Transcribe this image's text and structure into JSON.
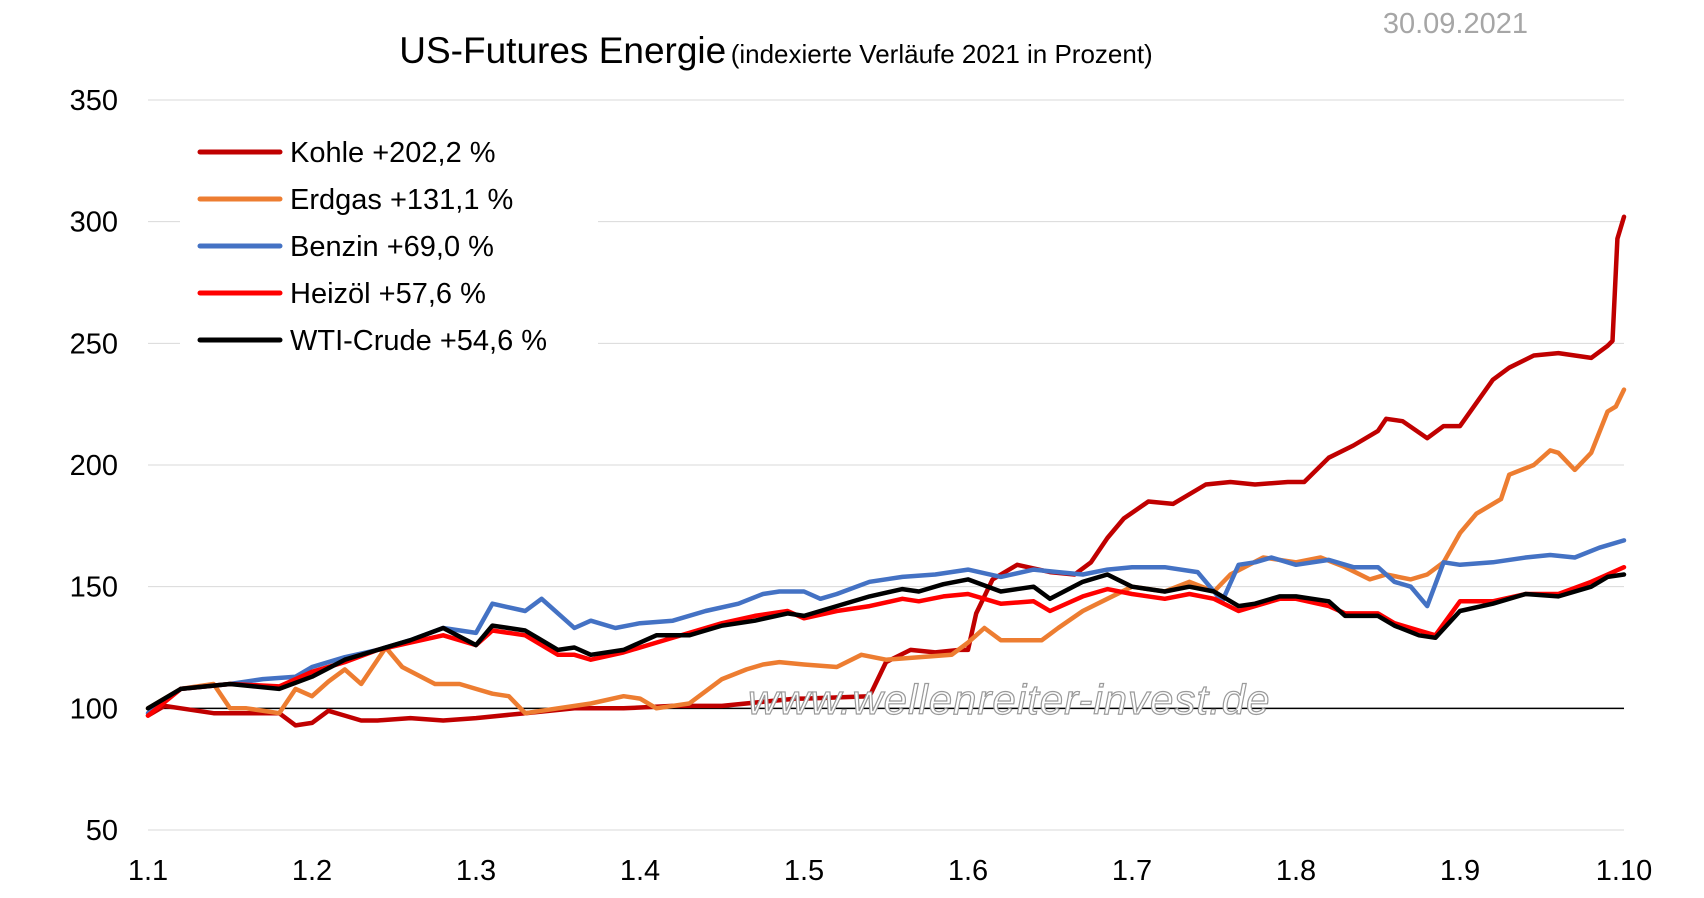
{
  "date": "30.09.2021",
  "watermark": "www.wellenreiter-invest.de",
  "chart_data": {
    "type": "line",
    "title": "US-Futures Energie",
    "subtitle": "(indexierte Verläufe 2021 in Prozent)",
    "xlabel": "",
    "ylabel": "",
    "ylim": [
      50,
      350
    ],
    "yticks": [
      50,
      100,
      150,
      200,
      250,
      300,
      350
    ],
    "xlim": [
      0,
      9
    ],
    "xticks": [
      0,
      1,
      2,
      3,
      4,
      5,
      6,
      7,
      8,
      9
    ],
    "xtick_labels": [
      "1.1",
      "1.2",
      "1.3",
      "1.4",
      "1.5",
      "1.6",
      "1.7",
      "1.8",
      "1.9",
      "1.10"
    ],
    "grid": "horizontal",
    "reference_line": 100,
    "legend_position": "top-left",
    "series": [
      {
        "name": "Kohle +202,2 %",
        "color": "#c00000",
        "x": [
          0,
          0.1,
          0.2,
          0.4,
          0.6,
          0.8,
          0.9,
          1.0,
          1.1,
          1.2,
          1.3,
          1.4,
          1.6,
          1.8,
          2.0,
          2.3,
          2.6,
          2.9,
          3.2,
          3.5,
          3.8,
          3.95,
          4.0,
          4.4,
          4.5,
          4.65,
          4.8,
          4.95,
          5.0,
          5.05,
          5.15,
          5.3,
          5.5,
          5.65,
          5.75,
          5.85,
          5.95,
          6.1,
          6.25,
          6.45,
          6.6,
          6.75,
          6.95,
          7.05,
          7.2,
          7.35,
          7.5,
          7.55,
          7.65,
          7.8,
          7.9,
          8.0,
          8.2,
          8.3,
          8.45,
          8.6,
          8.8,
          8.9,
          8.93,
          8.96,
          9.0
        ],
        "values": [
          97,
          101,
          100,
          98,
          98,
          98,
          93,
          94,
          99,
          97,
          95,
          95,
          96,
          95,
          96,
          98,
          100,
          100,
          101,
          101,
          103,
          104,
          104,
          105,
          119,
          124,
          123,
          124,
          124,
          139,
          153,
          159,
          156,
          155,
          160,
          170,
          178,
          185,
          184,
          192,
          193,
          192,
          193,
          193,
          203,
          208,
          214,
          219,
          218,
          211,
          216,
          216,
          235,
          240,
          245,
          246,
          244,
          249,
          251,
          293,
          302
        ]
      },
      {
        "name": "Erdgas +131,1 %",
        "color": "#ed7d31",
        "x": [
          0,
          0.2,
          0.4,
          0.5,
          0.6,
          0.8,
          0.9,
          1.0,
          1.1,
          1.2,
          1.3,
          1.45,
          1.55,
          1.75,
          1.9,
          2.0,
          2.1,
          2.2,
          2.3,
          2.5,
          2.7,
          2.9,
          3.0,
          3.1,
          3.3,
          3.5,
          3.65,
          3.75,
          3.85,
          4.0,
          4.2,
          4.35,
          4.5,
          4.7,
          4.9,
          5.0,
          5.1,
          5.2,
          5.3,
          5.45,
          5.55,
          5.7,
          5.85,
          6.0,
          6.2,
          6.35,
          6.5,
          6.6,
          6.8,
          7.0,
          7.15,
          7.3,
          7.45,
          7.55,
          7.7,
          7.8,
          7.9,
          8.0,
          8.1,
          8.25,
          8.3,
          8.45,
          8.55,
          8.6,
          8.7,
          8.8,
          8.9,
          8.95,
          9.0
        ],
        "values": [
          100,
          108,
          110,
          100,
          100,
          98,
          108,
          105,
          111,
          116,
          110,
          125,
          117,
          110,
          110,
          108,
          106,
          105,
          98,
          100,
          102,
          105,
          104,
          100,
          102,
          112,
          116,
          118,
          119,
          118,
          117,
          122,
          120,
          121,
          122,
          127,
          133,
          128,
          128,
          128,
          133,
          140,
          145,
          150,
          148,
          152,
          148,
          155,
          162,
          160,
          162,
          158,
          153,
          155,
          153,
          155,
          160,
          172,
          180,
          186,
          196,
          200,
          206,
          205,
          198,
          205,
          222,
          224,
          231
        ]
      },
      {
        "name": "Benzin +69,0 %",
        "color": "#4472c4",
        "x": [
          0,
          0.2,
          0.5,
          0.7,
          0.9,
          1.0,
          1.2,
          1.4,
          1.6,
          1.8,
          2.0,
          2.1,
          2.3,
          2.4,
          2.6,
          2.7,
          2.85,
          3.0,
          3.2,
          3.4,
          3.6,
          3.75,
          3.85,
          4.0,
          4.1,
          4.2,
          4.4,
          4.6,
          4.8,
          5.0,
          5.2,
          5.4,
          5.55,
          5.7,
          5.85,
          6.0,
          6.2,
          6.4,
          6.55,
          6.65,
          6.75,
          6.85,
          7.0,
          7.2,
          7.35,
          7.5,
          7.6,
          7.7,
          7.8,
          7.9,
          8.0,
          8.2,
          8.4,
          8.55,
          8.7,
          8.85,
          9.0
        ],
        "values": [
          98,
          108,
          110,
          112,
          113,
          117,
          121,
          124,
          128,
          133,
          131,
          143,
          140,
          145,
          133,
          136,
          133,
          135,
          136,
          140,
          143,
          147,
          148,
          148,
          145,
          147,
          152,
          154,
          155,
          157,
          154,
          157,
          156,
          155,
          157,
          158,
          158,
          156,
          144,
          159,
          160,
          162,
          159,
          161,
          158,
          158,
          152,
          150,
          142,
          160,
          159,
          160,
          162,
          163,
          162,
          166,
          169
        ]
      },
      {
        "name": "Heizöl +57,6 %",
        "color": "#ff0000",
        "x": [
          0,
          0.2,
          0.5,
          0.8,
          1.0,
          1.2,
          1.4,
          1.6,
          1.8,
          2.0,
          2.1,
          2.3,
          2.5,
          2.6,
          2.7,
          2.9,
          3.1,
          3.3,
          3.5,
          3.7,
          3.9,
          4.0,
          4.2,
          4.4,
          4.6,
          4.7,
          4.85,
          5.0,
          5.2,
          5.4,
          5.5,
          5.7,
          5.85,
          6.0,
          6.2,
          6.35,
          6.5,
          6.65,
          6.75,
          6.9,
          7.0,
          7.2,
          7.3,
          7.5,
          7.6,
          7.75,
          7.85,
          8.0,
          8.2,
          8.4,
          8.6,
          8.8,
          8.9,
          9.0
        ],
        "values": [
          97,
          108,
          110,
          109,
          115,
          119,
          124,
          127,
          130,
          126,
          132,
          130,
          122,
          122,
          120,
          123,
          127,
          131,
          135,
          138,
          140,
          137,
          140,
          142,
          145,
          144,
          146,
          147,
          143,
          144,
          140,
          146,
          149,
          147,
          145,
          147,
          145,
          140,
          142,
          145,
          145,
          142,
          139,
          139,
          135,
          132,
          130,
          144,
          144,
          147,
          147,
          152,
          155,
          158
        ]
      },
      {
        "name": "WTI-Crude +54,6 %",
        "color": "#000000",
        "x": [
          0,
          0.2,
          0.5,
          0.8,
          1.0,
          1.2,
          1.4,
          1.6,
          1.8,
          2.0,
          2.1,
          2.3,
          2.5,
          2.6,
          2.7,
          2.9,
          3.1,
          3.3,
          3.5,
          3.7,
          3.9,
          4.0,
          4.2,
          4.4,
          4.6,
          4.7,
          4.85,
          5.0,
          5.2,
          5.4,
          5.5,
          5.7,
          5.85,
          6.0,
          6.2,
          6.35,
          6.5,
          6.65,
          6.75,
          6.9,
          7.0,
          7.2,
          7.3,
          7.5,
          7.6,
          7.75,
          7.85,
          8.0,
          8.2,
          8.4,
          8.6,
          8.8,
          8.9,
          9.0
        ],
        "values": [
          100,
          108,
          110,
          108,
          113,
          120,
          124,
          128,
          133,
          126,
          134,
          132,
          124,
          125,
          122,
          124,
          130,
          130,
          134,
          136,
          139,
          138,
          142,
          146,
          149,
          148,
          151,
          153,
          148,
          150,
          145,
          152,
          155,
          150,
          148,
          150,
          148,
          142,
          143,
          146,
          146,
          144,
          138,
          138,
          134,
          130,
          129,
          140,
          143,
          147,
          146,
          150,
          154,
          155
        ]
      }
    ]
  }
}
